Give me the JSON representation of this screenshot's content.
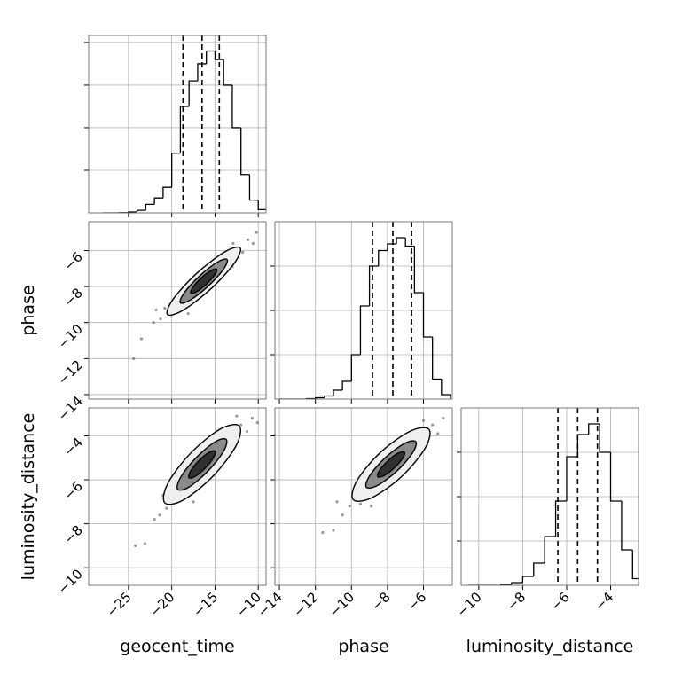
{
  "chart_data": {
    "type": "corner",
    "parameters": [
      {
        "name": "geocent_time",
        "xlim": [
          -29.6,
          -9.1
        ],
        "xticks": [
          {
            "value": -25,
            "label": "−25"
          },
          {
            "value": -20,
            "label": "−20"
          },
          {
            "value": -15,
            "label": "−15"
          },
          {
            "value": -10,
            "label": "−10"
          }
        ]
      },
      {
        "name": "phase",
        "xlim": [
          -14.25,
          -4.4
        ],
        "xticks": [
          {
            "value": -14,
            "label": "−14"
          },
          {
            "value": -12,
            "label": "−12"
          },
          {
            "value": -10,
            "label": "−10"
          },
          {
            "value": -8,
            "label": "−8"
          },
          {
            "value": -6,
            "label": "−6"
          }
        ]
      },
      {
        "name": "luminosity_distance",
        "xlim": [
          -10.8,
          -2.73
        ],
        "xticks": [
          {
            "value": -10,
            "label": "−10"
          },
          {
            "value": -8,
            "label": "−8"
          },
          {
            "value": -6,
            "label": "−6"
          },
          {
            "value": -4,
            "label": "−4"
          }
        ]
      }
    ],
    "grid": true,
    "histograms": [
      {
        "bins": [
          -28,
          -27,
          -26,
          -25,
          -24,
          -23,
          -22,
          -21,
          -20,
          -19,
          -18,
          -17,
          -16,
          -15,
          -14,
          -13,
          -12,
          -11,
          -10,
          -9
        ],
        "counts": [
          0,
          0,
          1,
          4,
          12,
          40,
          70,
          120,
          280,
          500,
          620,
          700,
          760,
          720,
          600,
          400,
          180,
          60,
          15
        ],
        "ylim": [
          0,
          833
        ],
        "yticks": [
          200,
          400,
          600,
          800
        ],
        "quantiles": [
          -18.7,
          -16.5,
          -14.5
        ]
      },
      {
        "bins": [
          -14,
          -13.5,
          -13,
          -12.5,
          -12,
          -11.5,
          -11,
          -10.5,
          -10,
          -9.5,
          -9,
          -8.5,
          -8,
          -7.5,
          -7,
          -6.5,
          -6,
          -5.5,
          -5,
          -4.5
        ],
        "counts": [
          0,
          0,
          0,
          2,
          6,
          14,
          40,
          80,
          200,
          420,
          600,
          670,
          700,
          728,
          690,
          480,
          280,
          90,
          20
        ],
        "ylim": [
          0,
          800
        ],
        "yticks": [
          200,
          400,
          600
        ],
        "quantiles": [
          -8.83,
          -7.7,
          -6.66
        ]
      },
      {
        "bins": [
          -10.5,
          -10,
          -9.5,
          -9,
          -8.5,
          -8,
          -7.5,
          -7,
          -6.5,
          -6,
          -5.5,
          -5,
          -4.5,
          -4,
          -3.5,
          -3,
          -2.5
        ],
        "counts": [
          0,
          0,
          0,
          4,
          12,
          40,
          100,
          220,
          380,
          580,
          680,
          728,
          600,
          380,
          160,
          30
        ],
        "ylim": [
          0,
          800
        ],
        "yticks": [
          200,
          400,
          600
        ],
        "quantiles": [
          -6.4,
          -5.5,
          -4.6
        ]
      }
    ],
    "pairs": [
      {
        "points": {
          "x": [
            -23.5,
            -22.1,
            -21.3,
            -20.8,
            -19.9,
            -19.2,
            -18.6,
            -17.9,
            -17.2,
            -16.4,
            -15.7,
            -15.1,
            -14.3,
            -13.6,
            -13.0,
            -12.4,
            -11.8,
            -11.2,
            -10.6,
            -10.2,
            -24.4,
            -21.8,
            -12.9,
            -18.1
          ],
          "y": [
            -10.9,
            -10.0,
            -9.8,
            -9.2,
            -9.4,
            -8.6,
            -9.0,
            -8.2,
            -8.7,
            -7.4,
            -8.1,
            -7.0,
            -7.2,
            -6.4,
            -6.9,
            -5.9,
            -6.1,
            -5.4,
            -5.6,
            -5.0,
            -12.0,
            -9.3,
            -5.6,
            -9.5
          ]
        },
        "contours": [
          {
            "x": [
              -12.1,
              -12.76,
              -15.5,
              -18.7,
              -20.5,
              -19.84,
              -17.1,
              -13.9
            ],
            "y": [
              -5.85,
              -6.7,
              -8.14,
              -9.32,
              -9.55,
              -8.7,
              -7.26,
              -6.08
            ]
          },
          {
            "x": [
              -13.6,
              -14.04,
              -15.8,
              -17.86,
              -19,
              -18.56,
              -16.8,
              -14.74
            ],
            "y": [
              -6.5,
              -7.05,
              -7.98,
              -8.75,
              -8.9,
              -8.35,
              -7.42,
              -6.65
            ]
          },
          {
            "x": [
              -14.8,
              -15.03,
              -16,
              -17.15,
              -17.8,
              -17.57,
              -16.6,
              -15.45
            ],
            "y": [
              -7.04,
              -7.35,
              -7.87,
              -8.29,
              -8.36,
              -8.05,
              -7.53,
              -7.11
            ]
          }
        ]
      },
      {
        "points": {
          "x": [
            -23.1,
            -22.0,
            -21.4,
            -20.6,
            -19.7,
            -19.3,
            -18.5,
            -17.8,
            -17.0,
            -16.3,
            -15.6,
            -14.8,
            -14.1,
            -13.4,
            -12.7,
            -12.0,
            -11.3,
            -10.7,
            -10.1,
            -24.2,
            -21.0,
            -12.5,
            -17.5
          ],
          "y": [
            -8.9,
            -7.8,
            -7.6,
            -7.3,
            -6.2,
            -7.0,
            -6.5,
            -5.6,
            -6.1,
            -5.0,
            -5.6,
            -4.4,
            -5.0,
            -3.9,
            -4.5,
            -3.5,
            -3.8,
            -3.2,
            -3.4,
            -9.0,
            -6.7,
            -3.1,
            -7.0
          ]
        },
        "contours": [
          {
            "x": [
              -12.2,
              -12.54,
              -15.2,
              -18.62,
              -20.8,
              -20.46,
              -17.8,
              -14.38
            ],
            "y": [
              -3.55,
              -4.43,
              -5.82,
              -6.91,
              -7.05,
              -6.17,
              -4.78,
              -3.69
            ]
          },
          {
            "x": [
              -13.7,
              -14.01,
              -15.78,
              -17.97,
              -19.3,
              -18.99,
              -17.22,
              -15.03
            ],
            "y": [
              -4.16,
              -4.7,
              -5.59,
              -6.32,
              -6.44,
              -5.9,
              -5.01,
              -4.28
            ]
          },
          {
            "x": [
              -15,
              -15.16,
              -16.11,
              -17.28,
              -18,
              -17.84,
              -16.89,
              -15.72
            ],
            "y": [
              -4.69,
              -4.98,
              -5.46,
              -5.84,
              -5.91,
              -5.62,
              -5.14,
              -4.76
            ]
          }
        ]
      },
      {
        "points": {
          "x": [
            -11.0,
            -10.5,
            -10.1,
            -9.7,
            -9.5,
            -9.0,
            -8.7,
            -8.3,
            -7.9,
            -7.5,
            -7.2,
            -6.8,
            -6.5,
            -6.1,
            -5.8,
            -5.5,
            -5.2,
            -4.9,
            -11.6,
            -10.8,
            -6.0,
            -8.9
          ],
          "y": [
            -8.3,
            -7.6,
            -7.2,
            -6.6,
            -7.1,
            -6.0,
            -6.6,
            -5.5,
            -6.0,
            -4.9,
            -5.5,
            -4.4,
            -5.0,
            -3.8,
            -4.4,
            -3.5,
            -3.9,
            -3.2,
            -8.4,
            -7.0,
            -3.3,
            -7.2
          ]
        },
        "contours": [
          {
            "x": [
              -5.7,
              -5.9,
              -7.2,
              -8.86,
              -9.9,
              -9.7,
              -8.4,
              -6.74
            ],
            "y": [
              -3.7,
              -4.55,
              -5.84,
              -6.81,
              -6.9,
              -6.05,
              -4.76,
              -3.79
            ]
          },
          {
            "x": [
              -6.43,
              -6.6,
              -7.47,
              -8.54,
              -9.17,
              -9,
              -8.13,
              -7.06
            ],
            "y": [
              -4.26,
              -4.77,
              -5.6,
              -6.25,
              -6.34,
              -5.83,
              -5,
              -4.35
            ]
          },
          {
            "x": [
              -7.06,
              -7.15,
              -7.62,
              -8.19,
              -8.54,
              -8.45,
              -7.98,
              -7.41
            ],
            "y": [
              -4.74,
              -5.01,
              -5.46,
              -5.81,
              -5.86,
              -5.59,
              -5.14,
              -4.79
            ]
          }
        ]
      }
    ],
    "contour_fills": [
      "#efefef",
      "#8a8a8a",
      "#303030"
    ],
    "point_color": "#555555"
  }
}
